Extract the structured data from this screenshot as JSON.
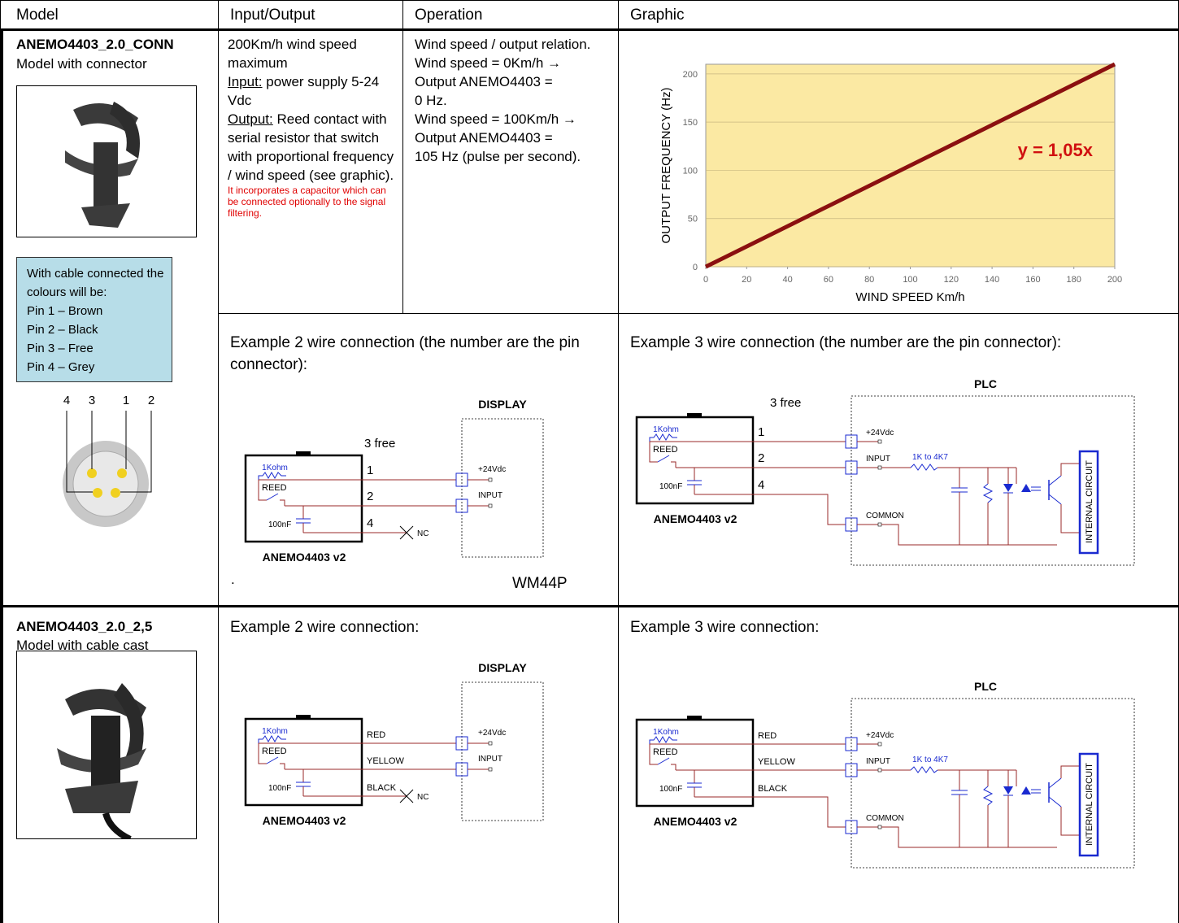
{
  "headers": [
    "Model",
    "Input/Output",
    "Operation",
    "Graphic"
  ],
  "rows": [
    {
      "model": {
        "code": "ANEMO4403_2.0_CONN",
        "description": "Model with connector",
        "cable_note": [
          "With cable connected the colours will be:",
          "Pin 1 – Brown",
          "Pin 2 – Black",
          "Pin 3 – Free",
          "Pin 4 – Grey"
        ],
        "pins": [
          "4",
          "3",
          "1",
          "2"
        ]
      },
      "input_output": {
        "intro": "200Km/h wind speed maximum",
        "input_label": "Input:",
        "input_text": "power supply 5-24 Vdc",
        "output_label": "Output:",
        "output_text": "Reed contact with serial resistor that switch with proportional frequency / wind speed (see graphic).",
        "note": "It incorporates a capacitor which can be connected optionally to the signal filtering."
      },
      "operation": [
        "Wind speed / output relation.",
        "Wind speed = 0Km/h →",
        "Output ANEMO4403 =",
        "0 Hz.",
        "Wind speed = 100Km/h →",
        "Output ANEMO4403 =",
        "105 Hz (pulse per second)."
      ],
      "graphic": {
        "type": "line",
        "xlabel": "WIND SPEED Km/h",
        "ylabel": "OUTPUT FREQUENCY (Hz)",
        "annotation": "y = 1,05x",
        "x": [
          0,
          200
        ],
        "values": [
          0,
          210
        ],
        "color": "#8b1010",
        "xlim": [
          0,
          200
        ],
        "ylim": [
          0,
          210
        ],
        "xticks": [
          0,
          20,
          40,
          60,
          80,
          100,
          120,
          140,
          160,
          180,
          200
        ],
        "yticks": [
          0,
          50,
          100,
          150,
          200
        ],
        "grid": true
      },
      "examples": [
        {
          "title": "Example 2 wire connection (the number are the pin connector):",
          "resistor": "1Kohm",
          "reed": "REED",
          "capacitor": "100nF",
          "sensor": "ANEMO4403 v2",
          "wires": [
            "1",
            "2",
            "4"
          ],
          "extra": "3 free",
          "box": "DISPLAY",
          "terminals": [
            "+24Vdc",
            "INPUT"
          ],
          "nc": "NC",
          "device": "WM44P",
          "dot": "."
        },
        {
          "title": "Example 3 wire connection (the number are the pin connector):",
          "resistor": "1Kohm",
          "reed": "REED",
          "capacitor": "100nF",
          "sensor": "ANEMO4403 v2",
          "wires": [
            "1",
            "2",
            "4"
          ],
          "extra": "3 free",
          "box": "PLC",
          "terminals": [
            "+24Vdc",
            "INPUT",
            "COMMON"
          ],
          "internal_resistor": "1K  to  4K7",
          "internal": "INTERNAL CIRCUIT"
        }
      ]
    },
    {
      "model": {
        "code": "ANEMO4403_2.0_2,5",
        "description": "Model with cable cast"
      },
      "examples": [
        {
          "title": "Example 2 wire connection:",
          "resistor": "1Kohm",
          "reed": "REED",
          "capacitor": "100nF",
          "sensor": "ANEMO4403 v2",
          "wires": [
            "RED",
            "YELLOW",
            "BLACK"
          ],
          "box": "DISPLAY",
          "terminals": [
            "+24Vdc",
            "INPUT"
          ],
          "nc": "NC"
        },
        {
          "title": "Example 3 wire connection:",
          "resistor": "1Kohm",
          "reed": "REED",
          "capacitor": "100nF",
          "sensor": "ANEMO4403 v2",
          "wires": [
            "RED",
            "YELLOW",
            "BLACK"
          ],
          "box": "PLC",
          "terminals": [
            "+24Vdc",
            "INPUT",
            "COMMON"
          ],
          "internal_resistor": "1K  to  4K7",
          "internal": "INTERNAL CIRCUIT"
        }
      ]
    }
  ]
}
